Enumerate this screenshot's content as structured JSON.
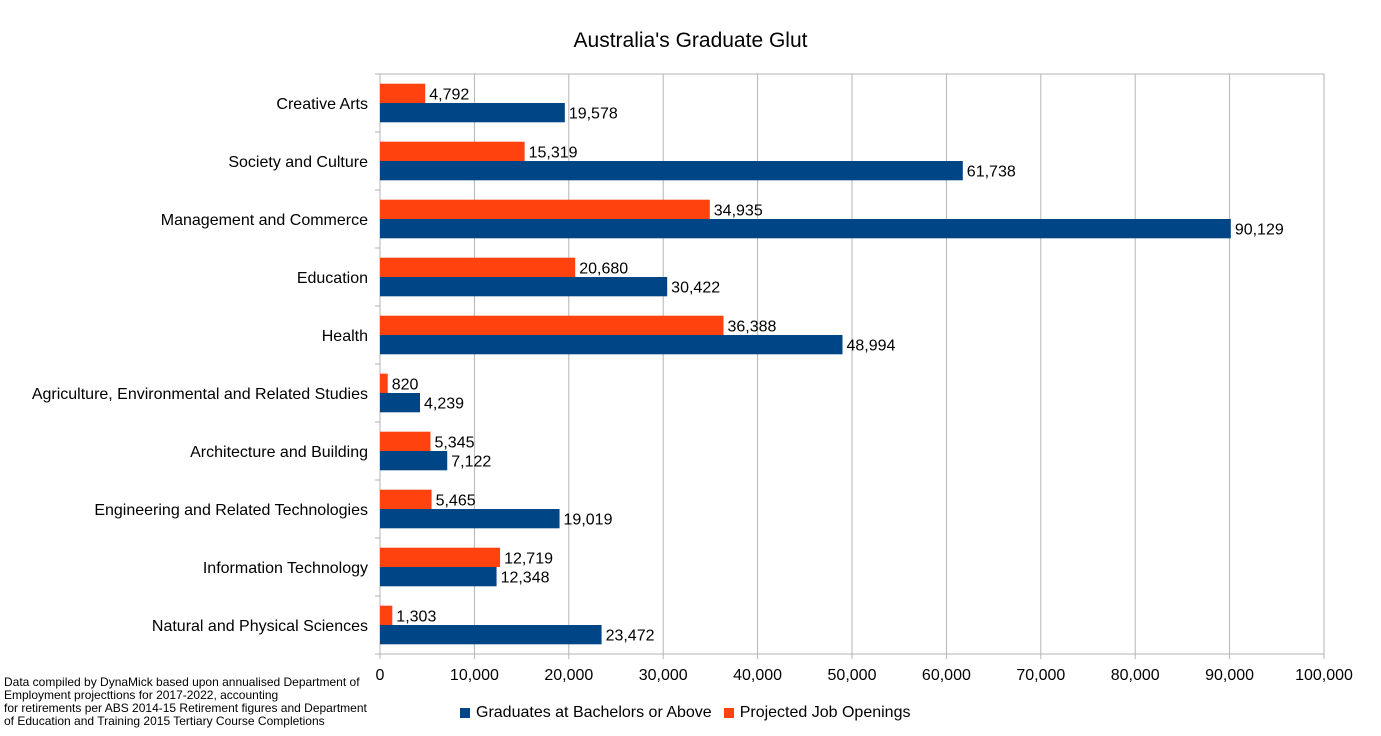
{
  "colors": {
    "graduates": "#004586",
    "openings": "#ff420e",
    "grid": "#b3b3b3"
  },
  "chart_data": {
    "type": "bar",
    "orientation": "horizontal",
    "title": "Australia's Graduate Glut",
    "categories": [
      "Creative Arts",
      "Society and Culture",
      "Management and Commerce",
      "Education",
      "Health",
      "Agriculture, Environmental and Related Studies",
      "Architecture and Building",
      "Engineering and Related Technologies",
      "Information Technology",
      "Natural and Physical Sciences"
    ],
    "series": [
      {
        "name": "Graduates at Bachelors or Above",
        "values": [
          19578,
          61738,
          90129,
          30422,
          48994,
          4239,
          7122,
          19019,
          12348,
          23472
        ],
        "labels": [
          "19,578",
          "61,738",
          "90,129",
          "30,422",
          "48,994",
          "4,239",
          "7,122",
          "19,019",
          "12,348",
          "23,472"
        ]
      },
      {
        "name": "Projected Job Openings",
        "values": [
          4792,
          15319,
          34935,
          20680,
          36388,
          820,
          5345,
          5465,
          12719,
          1303
        ],
        "labels": [
          "4,792",
          "15,319",
          "34,935",
          "20,680",
          "36,388",
          "820",
          "5,345",
          "5,465",
          "12,719",
          "1,303"
        ]
      }
    ],
    "xlim": [
      0,
      100000
    ],
    "xticks": [
      "0",
      "10,000",
      "20,000",
      "30,000",
      "40,000",
      "50,000",
      "60,000",
      "70,000",
      "80,000",
      "90,000",
      "100,000"
    ],
    "grid": true,
    "legend": "bottom"
  },
  "source_note": [
    "Data compiled by DynaMick based upon annualised Department of",
    "Employment projecttions for 2017-2022, accounting",
    "for retirements per ABS 2014-15 Retirement figures and Department",
    "of Education and Training 2015 Tertiary Course Completions"
  ]
}
